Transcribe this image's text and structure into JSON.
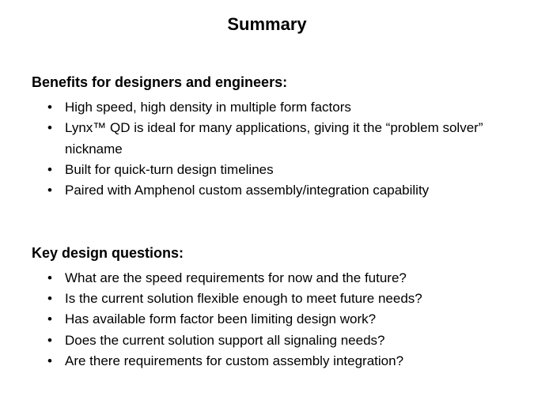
{
  "title": "Summary",
  "sections": [
    {
      "heading": "Benefits for designers and engineers:",
      "items": [
        "High speed, high density in multiple form factors",
        "Lynx™ QD is ideal for many applications, giving it the “problem solver” nickname",
        "Built for quick-turn design timelines",
        "Paired with Amphenol custom assembly/integration capability"
      ]
    },
    {
      "heading": "Key design questions:",
      "items": [
        "What are the speed requirements for now and the future?",
        "Is the current solution flexible enough to meet future needs?",
        "Has available form factor been limiting design work?",
        "Does the current solution support all signaling needs?",
        "Are there requirements for custom assembly integration?"
      ]
    }
  ]
}
